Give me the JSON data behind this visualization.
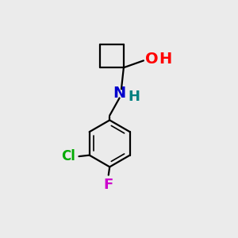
{
  "background_color": "#ebebeb",
  "bond_color": "#000000",
  "bond_width": 1.6,
  "atoms": {
    "O": {
      "color": "#ff0000",
      "fontsize": 14,
      "fontweight": "bold"
    },
    "H_O": {
      "color": "#ff0000",
      "fontsize": 14,
      "fontweight": "bold"
    },
    "N": {
      "color": "#0000cc",
      "fontsize": 14,
      "fontweight": "bold"
    },
    "H_N": {
      "color": "#008080",
      "fontsize": 13,
      "fontweight": "bold"
    },
    "Cl": {
      "color": "#00aa00",
      "fontsize": 12,
      "fontweight": "bold"
    },
    "F": {
      "color": "#cc00cc",
      "fontsize": 13,
      "fontweight": "bold"
    }
  },
  "figsize": [
    3.0,
    3.0
  ],
  "dpi": 100
}
